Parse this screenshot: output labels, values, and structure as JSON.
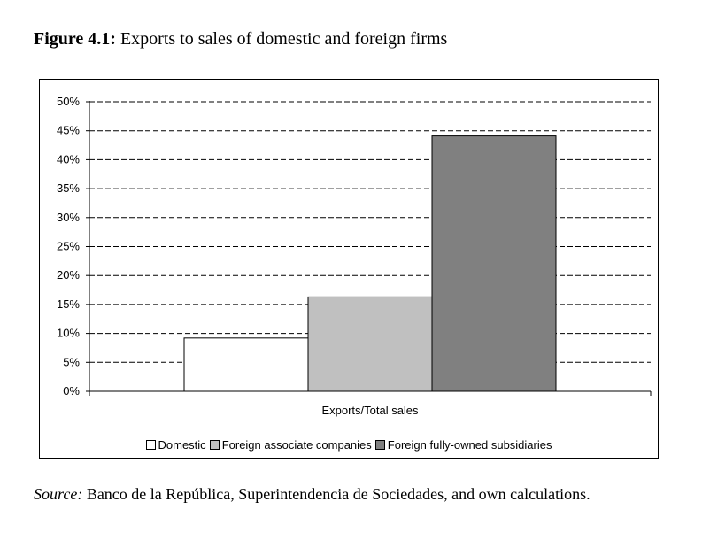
{
  "figure": {
    "number": "Figure 4.1:",
    "caption": "Exports to sales of domestic and foreign firms"
  },
  "source": {
    "lead": "Source:",
    "text": "Banco de la República, Superintendencia de Sociedades, and own calculations."
  },
  "chart_data": {
    "type": "bar",
    "categories": [
      "Exports/Total sales"
    ],
    "series": [
      {
        "name": "Domestic",
        "values": [
          9.2
        ],
        "color": "#ffffff"
      },
      {
        "name": "Foreign associate companies",
        "values": [
          16.3
        ],
        "color": "#c0c0c0"
      },
      {
        "name": "Foreign fully-owned subsidiaries",
        "values": [
          44.1
        ],
        "color": "#808080"
      }
    ],
    "ylim": [
      0,
      50
    ],
    "yticks": [
      "0%",
      "5%",
      "10%",
      "15%",
      "20%",
      "25%",
      "30%",
      "35%",
      "40%",
      "45%",
      "50%"
    ],
    "grid": "dashed horizontal",
    "legend_position": "bottom"
  }
}
